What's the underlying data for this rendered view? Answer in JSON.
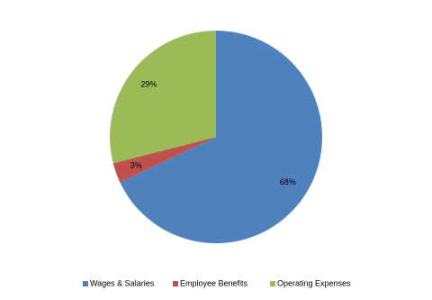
{
  "chart_data": {
    "type": "pie",
    "categories": [
      "Wages & Salaries",
      "Employee Benefits",
      "Operating Expenses"
    ],
    "values": [
      68,
      3,
      29
    ],
    "value_labels": [
      "68%",
      "3%",
      "29%"
    ],
    "colors": [
      "#4f81bd",
      "#c0504d",
      "#9bbb59"
    ],
    "legend": "bottom"
  }
}
